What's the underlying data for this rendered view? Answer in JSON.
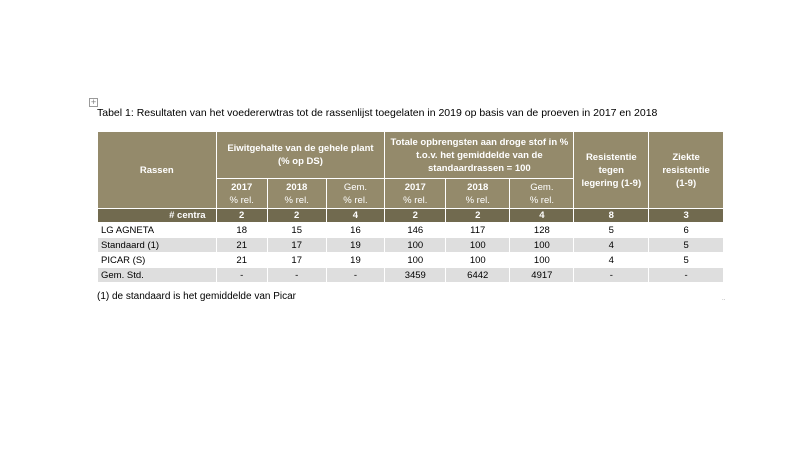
{
  "caption": "Tabel 1: Resultaten van het voedererwtras tot de rassenlijst toegelaten in 2019 op basis van de proeven in 2017 en 2018",
  "move_handle_glyph": "+",
  "header": {
    "rassen": "Rassen",
    "eiwit_line1": "Eiwitgehalte van de gehele plant",
    "eiwit_line2": "(% op DS)",
    "opbrengst_line1": "Totale opbrengsten aan droge stof in %",
    "opbrengst_line2": "t.o.v. het gemiddelde van de",
    "opbrengst_line3": "standaardrassen = 100",
    "resistentie_line1": "Resistentie",
    "resistentie_line2": "tegen",
    "resistentie_line3": "legering (1-9)",
    "ziekte_line1": "Ziekte",
    "ziekte_line2": "resistentie",
    "ziekte_line3": "(1-9)",
    "sub_years": [
      "2017",
      "2018",
      "Gem.",
      "2017",
      "2018",
      "Gem."
    ],
    "sub_unit": "% rel."
  },
  "count_row": {
    "label": "# centra",
    "values": [
      "2",
      "2",
      "4",
      "2",
      "2",
      "4",
      "8",
      "3"
    ]
  },
  "rows": [
    {
      "name": "LG AGNETA",
      "values": [
        "18",
        "15",
        "16",
        "146",
        "117",
        "128",
        "5",
        "6"
      ]
    },
    {
      "name": "Standaard (1)",
      "values": [
        "21",
        "17",
        "19",
        "100",
        "100",
        "100",
        "4",
        "5"
      ]
    },
    {
      "name": "PICAR (S)",
      "values": [
        "21",
        "17",
        "19",
        "100",
        "100",
        "100",
        "4",
        "5"
      ]
    },
    {
      "name": "Gem. Std.",
      "values": [
        "-",
        "-",
        "-",
        "3459",
        "6442",
        "4917",
        "-",
        "-"
      ]
    }
  ],
  "footnote": "(1) de standaard is het gemiddelde van Picar",
  "corner_mark": "..",
  "colors": {
    "header": "#948a6b",
    "count_row": "#716a4f",
    "shaded_row": "#dedede"
  }
}
